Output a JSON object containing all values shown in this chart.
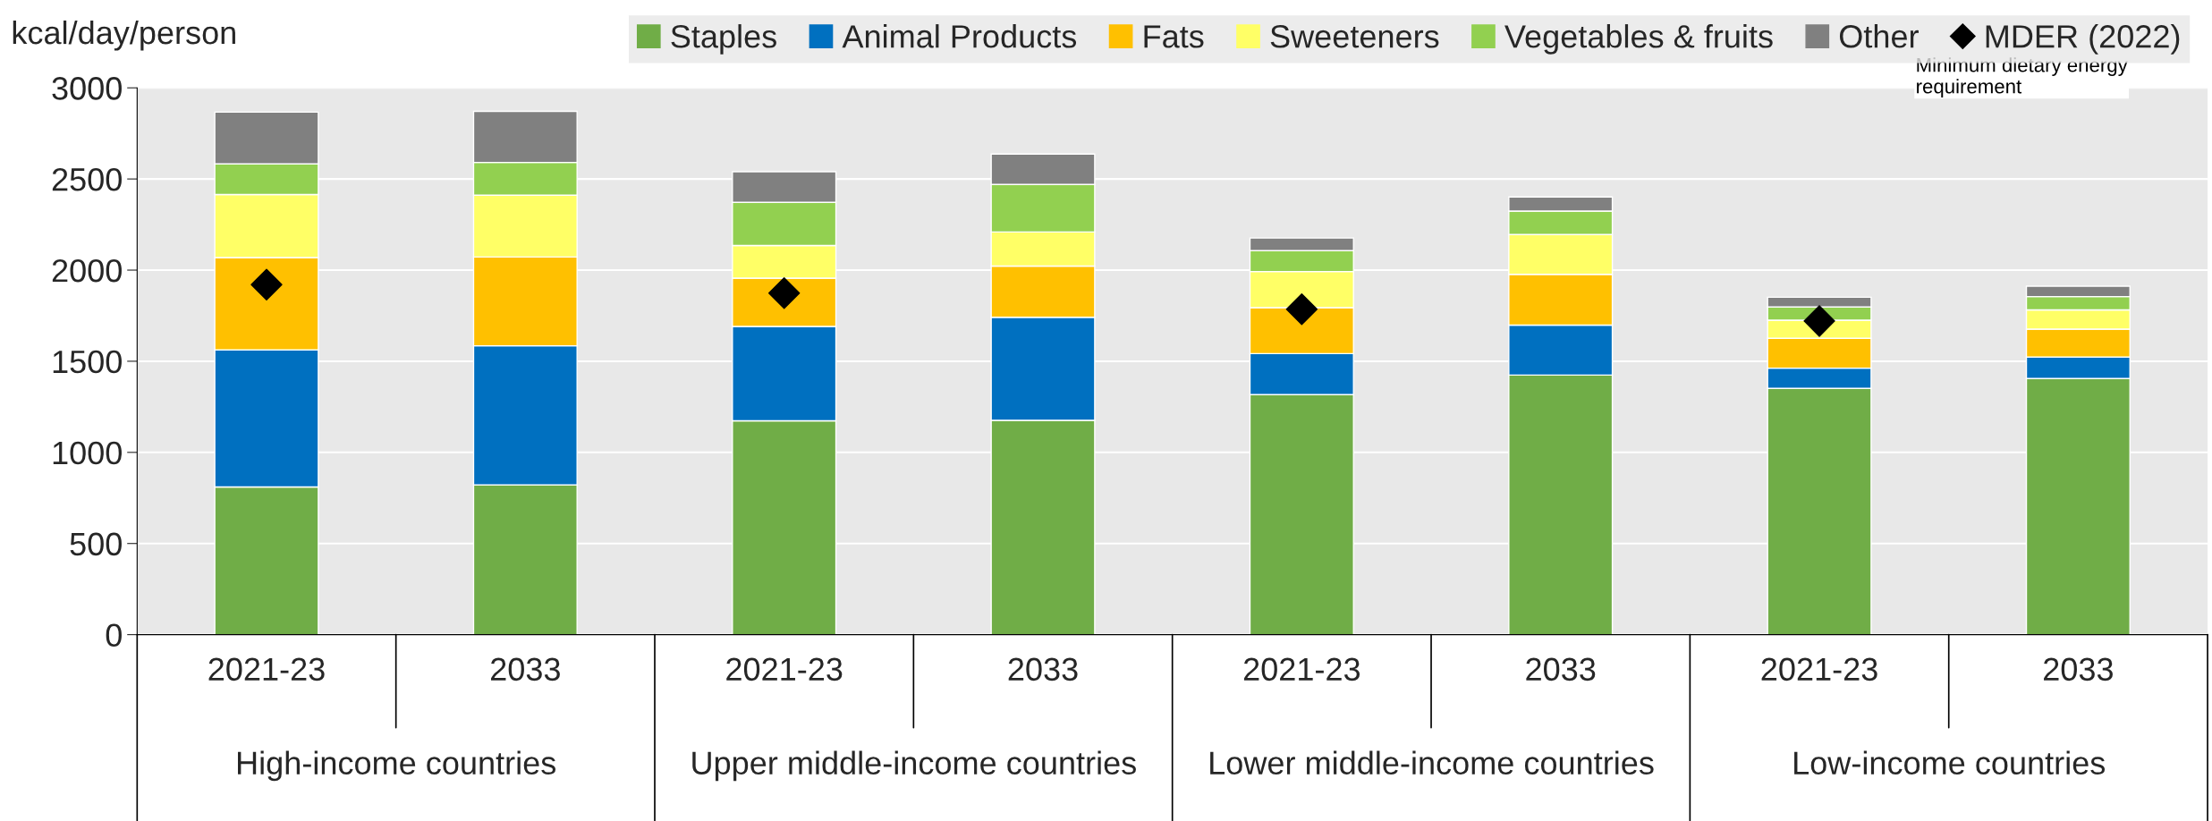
{
  "chart_data": {
    "type": "bar",
    "stacked": true,
    "ylabel": "kcal/day/person",
    "categories": [
      "2021-23",
      "2033",
      "2021-23",
      "2033",
      "2021-23",
      "2033",
      "2021-23",
      "2033"
    ],
    "series": [
      {
        "name": "Staples",
        "color": "#70ad47",
        "values": [
          810,
          822,
          1173,
          1176,
          1317,
          1424,
          1351,
          1405
        ]
      },
      {
        "name": "Animal Products",
        "color": "#0070c0",
        "values": [
          752,
          763,
          518,
          565,
          225,
          274,
          111,
          118
        ]
      },
      {
        "name": "Fats",
        "color": "#ffc000",
        "values": [
          507,
          487,
          265,
          281,
          252,
          279,
          164,
          153
        ]
      },
      {
        "name": "Sweeteners",
        "color": "#ffff66",
        "values": [
          346,
          339,
          179,
          187,
          198,
          218,
          99,
          106
        ]
      },
      {
        "name": "Vegetables & fruits",
        "color": "#92d050",
        "values": [
          168,
          180,
          237,
          261,
          115,
          129,
          73,
          73
        ]
      },
      {
        "name": "Other",
        "color": "#808080",
        "values": [
          284,
          280,
          168,
          167,
          69,
          77,
          53,
          57
        ]
      },
      {
        "name": "MDER (2022)",
        "type": "scatter",
        "marker": "diamond",
        "color": "#000000",
        "values": [
          1920,
          null,
          1874,
          null,
          1786,
          null,
          1721,
          null
        ]
      }
    ],
    "ylim": [
      0,
      3000
    ],
    "yticks": [
      0,
      500,
      1000,
      1500,
      2000,
      2500,
      3000
    ],
    "grid": "y",
    "legend": "top",
    "annotations": [
      "High-income countries",
      "Upper middle-income countries",
      "Lower middle-income countries",
      "Low-income countries",
      "Minimum dietary energy requirement"
    ]
  }
}
